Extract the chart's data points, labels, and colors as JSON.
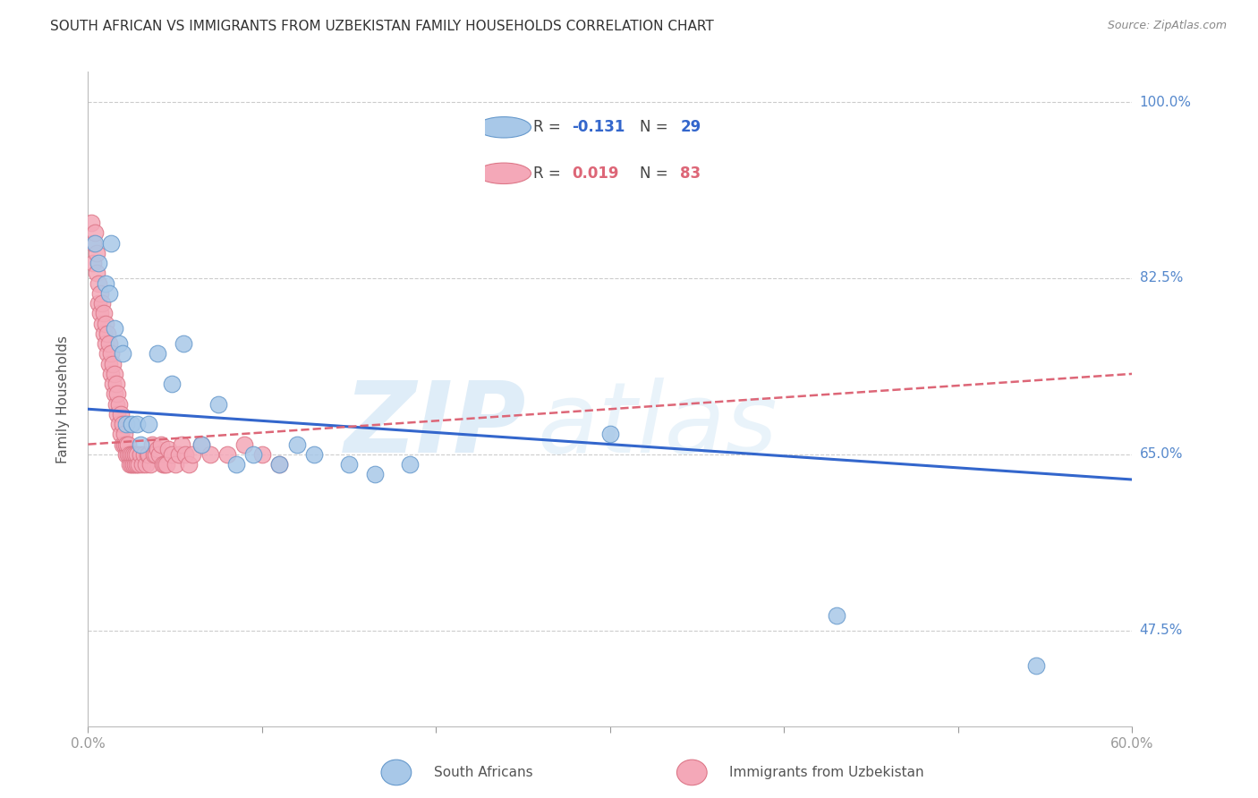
{
  "title": "SOUTH AFRICAN VS IMMIGRANTS FROM UZBEKISTAN FAMILY HOUSEHOLDS CORRELATION CHART",
  "source": "Source: ZipAtlas.com",
  "ylabel": "Family Households",
  "legend_label1": "South Africans",
  "legend_label2": "Immigrants from Uzbekistan",
  "watermark_zip": "ZIP",
  "watermark_atlas": "atlas",
  "xlim": [
    0.0,
    0.6
  ],
  "ylim": [
    0.38,
    1.03
  ],
  "yticks": [
    0.475,
    0.65,
    0.825,
    1.0
  ],
  "ytick_labels": [
    "47.5%",
    "65.0%",
    "82.5%",
    "100.0%"
  ],
  "xticks": [
    0.0,
    0.1,
    0.2,
    0.3,
    0.4,
    0.5,
    0.6
  ],
  "xtick_labels": [
    "0.0%",
    "",
    "",
    "",
    "",
    "",
    "60.0%"
  ],
  "blue_color": "#a8c8e8",
  "pink_color": "#f4a8b8",
  "blue_edge": "#6699cc",
  "pink_edge": "#dd7788",
  "line_blue": "#3366cc",
  "line_pink": "#dd6677",
  "grid_color": "#cccccc",
  "axis_color": "#5588cc",
  "title_color": "#333333",
  "south_african_x": [
    0.004,
    0.006,
    0.01,
    0.012,
    0.013,
    0.015,
    0.018,
    0.02,
    0.022,
    0.025,
    0.028,
    0.03,
    0.035,
    0.04,
    0.048,
    0.055,
    0.065,
    0.075,
    0.085,
    0.095,
    0.11,
    0.12,
    0.13,
    0.15,
    0.165,
    0.185,
    0.43,
    0.545,
    0.3
  ],
  "south_african_y": [
    0.86,
    0.84,
    0.82,
    0.81,
    0.86,
    0.775,
    0.76,
    0.75,
    0.68,
    0.68,
    0.68,
    0.66,
    0.68,
    0.75,
    0.72,
    0.76,
    0.66,
    0.7,
    0.64,
    0.65,
    0.64,
    0.66,
    0.65,
    0.64,
    0.63,
    0.64,
    0.49,
    0.44,
    0.67
  ],
  "uzbek_x": [
    0.002,
    0.003,
    0.003,
    0.004,
    0.005,
    0.005,
    0.006,
    0.006,
    0.007,
    0.007,
    0.008,
    0.008,
    0.009,
    0.009,
    0.01,
    0.01,
    0.011,
    0.011,
    0.012,
    0.012,
    0.013,
    0.013,
    0.014,
    0.014,
    0.015,
    0.015,
    0.016,
    0.016,
    0.017,
    0.017,
    0.018,
    0.018,
    0.019,
    0.019,
    0.02,
    0.02,
    0.021,
    0.021,
    0.022,
    0.022,
    0.023,
    0.023,
    0.024,
    0.024,
    0.025,
    0.025,
    0.026,
    0.026,
    0.027,
    0.027,
    0.028,
    0.028,
    0.029,
    0.03,
    0.031,
    0.032,
    0.033,
    0.034,
    0.035,
    0.036,
    0.037,
    0.038,
    0.039,
    0.04,
    0.041,
    0.042,
    0.043,
    0.044,
    0.045,
    0.046,
    0.048,
    0.05,
    0.052,
    0.054,
    0.056,
    0.058,
    0.06,
    0.065,
    0.07,
    0.08,
    0.09,
    0.1,
    0.11
  ],
  "uzbek_y": [
    0.88,
    0.86,
    0.84,
    0.87,
    0.83,
    0.85,
    0.8,
    0.82,
    0.79,
    0.81,
    0.78,
    0.8,
    0.77,
    0.79,
    0.76,
    0.78,
    0.75,
    0.77,
    0.76,
    0.74,
    0.73,
    0.75,
    0.72,
    0.74,
    0.71,
    0.73,
    0.7,
    0.72,
    0.69,
    0.71,
    0.68,
    0.7,
    0.67,
    0.69,
    0.66,
    0.68,
    0.66,
    0.67,
    0.65,
    0.66,
    0.65,
    0.66,
    0.64,
    0.65,
    0.64,
    0.65,
    0.64,
    0.65,
    0.64,
    0.65,
    0.64,
    0.65,
    0.64,
    0.65,
    0.64,
    0.65,
    0.64,
    0.65,
    0.65,
    0.64,
    0.66,
    0.65,
    0.65,
    0.655,
    0.65,
    0.66,
    0.64,
    0.64,
    0.64,
    0.655,
    0.65,
    0.64,
    0.65,
    0.66,
    0.65,
    0.64,
    0.65,
    0.66,
    0.65,
    0.65,
    0.66,
    0.65,
    0.64
  ],
  "sa_line_x0": 0.0,
  "sa_line_y0": 0.695,
  "sa_line_x1": 0.6,
  "sa_line_y1": 0.625,
  "uz_line_x0": 0.0,
  "uz_line_y0": 0.66,
  "uz_line_x1": 0.6,
  "uz_line_y1": 0.73
}
